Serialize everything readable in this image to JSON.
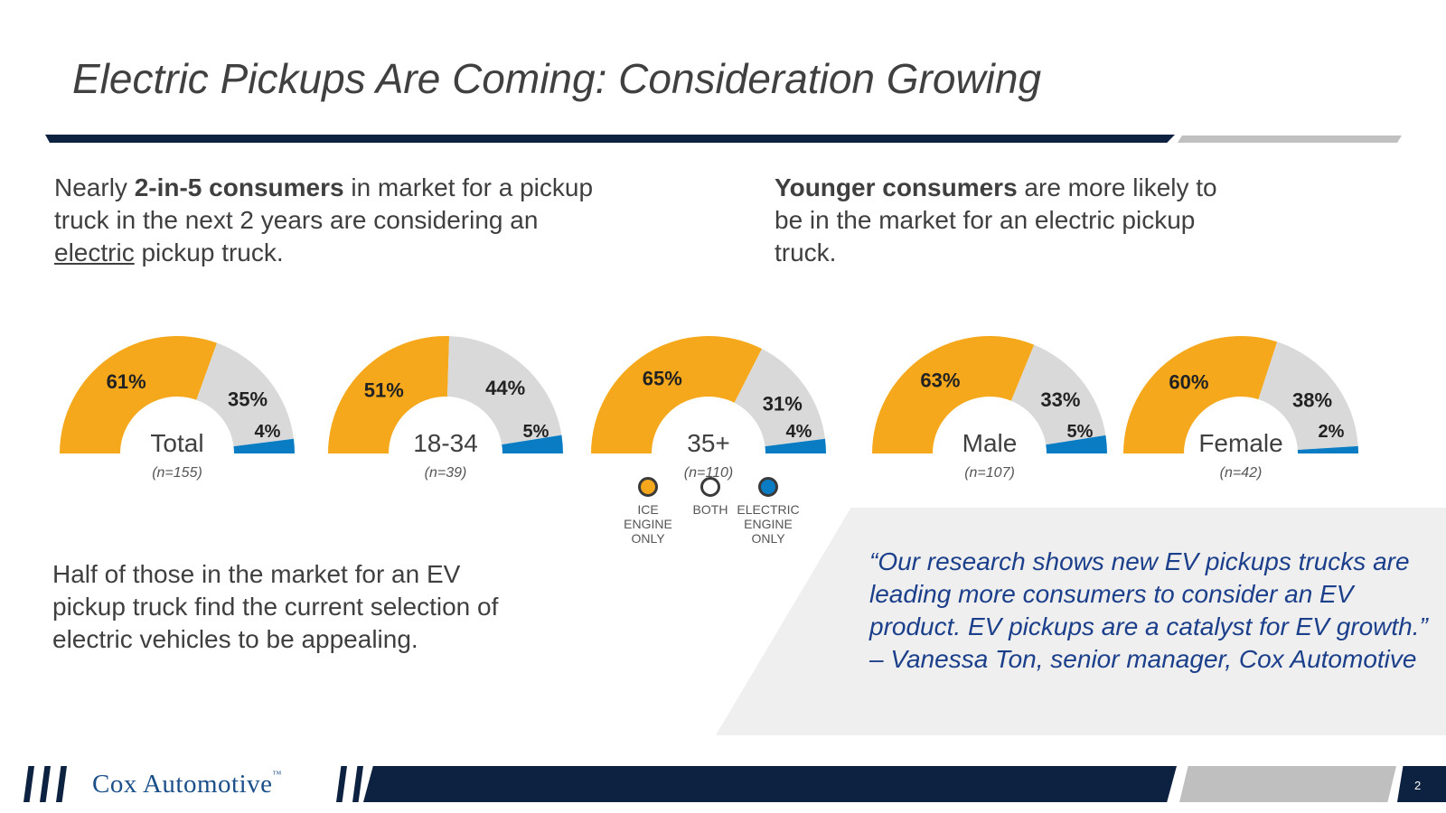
{
  "title": "Electric Pickups Are Coming: Consideration Growing",
  "left_text": {
    "pre": "Nearly ",
    "bold": "2-in-5 consumers",
    "mid": " in market for a pickup truck in the next 2 years are considering an ",
    "underlined": "electric",
    "post": " pickup truck."
  },
  "right_text": {
    "bold": "Younger consumers",
    "rest": " are more likely to be in the market for an electric pickup truck."
  },
  "bottom_text": "Half of those in the market for an EV pickup truck find the current selection of electric vehicles to be appealing.",
  "quote": "“Our research shows new EV pickups trucks are leading more consumers to consider an EV product. EV pickups are a catalyst for EV growth.” – Vanessa Ton, senior manager, Cox Automotive",
  "legend": {
    "ice": "ICE ENGINE ONLY",
    "both": "BOTH",
    "electric": "ELECTRIC ENGINE ONLY"
  },
  "footer": {
    "logo_text": "Cox Automotive",
    "logo_tm": "™",
    "page_number": "2"
  },
  "colors": {
    "ice": "#f5a81c",
    "both": "#d9d9d9",
    "electric": "#0a7cc4",
    "navy": "#0d2140"
  },
  "chart_data": {
    "type": "pie",
    "style": "semi-donut",
    "series_names": [
      "ICE ENGINE ONLY",
      "BOTH",
      "ELECTRIC ENGINE ONLY"
    ],
    "charts": [
      {
        "label": "Total",
        "n": "(n=155)",
        "values": [
          61,
          35,
          4
        ],
        "labels": [
          "61%",
          "35%",
          "4%"
        ]
      },
      {
        "label": "18-34",
        "n": "(n=39)",
        "values": [
          51,
          44,
          5
        ],
        "labels": [
          "51%",
          "44%",
          "5%"
        ]
      },
      {
        "label": "35+",
        "n": "(n=110)",
        "values": [
          65,
          31,
          4
        ],
        "labels": [
          "65%",
          "31%",
          "4%"
        ]
      },
      {
        "label": "Male",
        "n": "(n=107)",
        "values": [
          63,
          33,
          5
        ],
        "labels": [
          "63%",
          "33%",
          "5%"
        ]
      },
      {
        "label": "Female",
        "n": "(n=42)",
        "values": [
          60,
          38,
          2
        ],
        "labels": [
          "60%",
          "38%",
          "2%"
        ]
      }
    ]
  }
}
